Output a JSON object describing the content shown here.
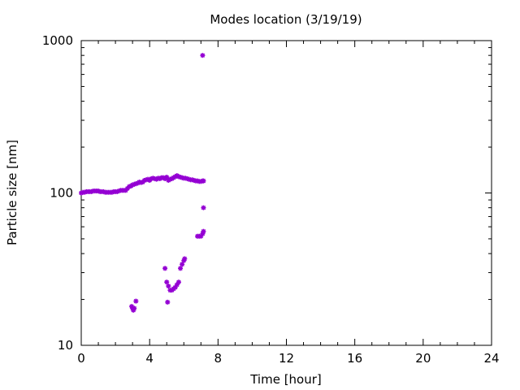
{
  "chart_data": {
    "type": "scatter",
    "title": "Modes location (3/19/19)",
    "xlabel": "Time [hour]",
    "ylabel": "Particle size [nm]",
    "xlim": [
      0,
      24
    ],
    "ylim": [
      10,
      1000
    ],
    "yscale": "log",
    "x_ticks": [
      0,
      4,
      8,
      12,
      16,
      20,
      24
    ],
    "x_tick_labels": [
      "0",
      "4",
      "8",
      "12",
      "16",
      "20",
      "24"
    ],
    "y_ticks": [
      10,
      100,
      1000
    ],
    "y_tick_labels": [
      "10",
      "100",
      "1000"
    ],
    "grid": false,
    "legend": "none",
    "marker_color": "#9400d3",
    "series": [
      {
        "x": [
          0.0,
          0.1,
          0.2,
          0.3,
          0.4,
          0.5,
          0.6,
          0.7,
          0.8,
          0.9,
          1.0,
          1.1,
          1.2,
          1.3,
          1.4,
          1.5,
          1.6,
          1.7,
          1.8,
          1.9,
          2.0,
          2.1,
          2.2,
          2.3,
          2.4,
          2.5,
          2.6,
          2.7,
          2.8,
          2.9,
          3.0,
          3.1,
          3.2,
          3.3,
          3.4,
          3.5,
          3.6,
          3.7,
          3.8,
          3.9,
          4.0,
          4.1,
          4.2,
          4.3,
          4.4,
          4.5,
          4.6,
          4.7,
          4.8,
          4.9,
          5.0,
          5.1,
          5.2,
          5.3,
          5.4,
          5.5,
          5.6,
          5.7,
          5.8,
          5.9,
          6.0,
          6.1,
          6.2,
          6.3,
          6.4,
          6.5,
          6.6,
          6.7,
          6.8,
          6.9,
          7.0,
          7.1,
          7.15,
          2.95,
          3.0,
          3.05,
          3.1,
          3.2,
          4.9,
          5.0,
          5.05,
          5.1,
          5.2,
          5.3,
          5.4,
          5.5,
          5.6,
          5.7,
          5.8,
          5.9,
          6.0,
          6.05,
          6.8,
          6.9,
          7.0,
          7.1,
          7.15,
          7.15,
          7.1
        ],
        "y": [
          100,
          101,
          101,
          102,
          102,
          102,
          102,
          103,
          103,
          103,
          103,
          102,
          102,
          102,
          101,
          101,
          101,
          101,
          101,
          102,
          102,
          102,
          103,
          104,
          104,
          104,
          104,
          107,
          110,
          111,
          113,
          114,
          115,
          116,
          118,
          117,
          118,
          121,
          122,
          123,
          121,
          124,
          125,
          124,
          123,
          125,
          124,
          126,
          126,
          124,
          127,
          121,
          123,
          124,
          126,
          128,
          130,
          128,
          127,
          126,
          125,
          125,
          124,
          123,
          122,
          122,
          121,
          120,
          120,
          119,
          119,
          120,
          120,
          18,
          17.5,
          17,
          17.5,
          19.5,
          32,
          26,
          19.2,
          24.5,
          23,
          23,
          23.5,
          24,
          25,
          26,
          32,
          34,
          36,
          37,
          52,
          52,
          52,
          54,
          56,
          80,
          800
        ]
      }
    ]
  }
}
